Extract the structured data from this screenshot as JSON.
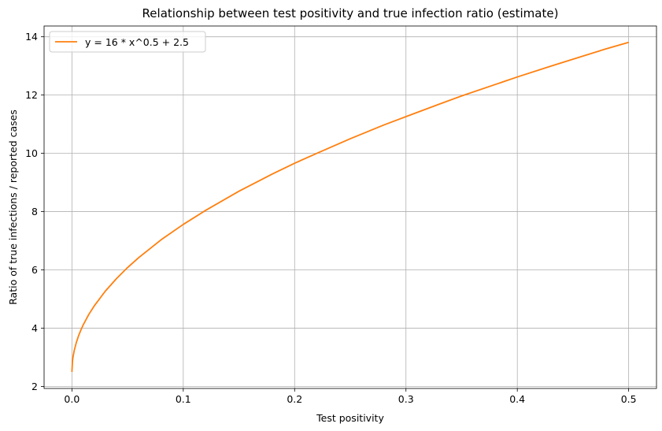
{
  "chart_data": {
    "type": "line",
    "title": "Relationship between test positivity and true infection ratio (estimate)",
    "xlabel": "Test positivity",
    "ylabel": "Ratio of true infections / reported cases",
    "xlim": [
      -0.025,
      0.525
    ],
    "ylim": [
      1.93,
      14.37
    ],
    "x_ticks": [
      0.0,
      0.1,
      0.2,
      0.3,
      0.4,
      0.5
    ],
    "x_tick_labels": [
      "0.0",
      "0.1",
      "0.2",
      "0.3",
      "0.4",
      "0.5"
    ],
    "y_ticks": [
      2,
      4,
      6,
      8,
      10,
      12,
      14
    ],
    "y_tick_labels": [
      "2",
      "4",
      "6",
      "8",
      "10",
      "12",
      "14"
    ],
    "grid": true,
    "legend_position": "top-left",
    "series": [
      {
        "name": "y = 16 * x^0.5 + 2.5",
        "color": "#ff7f0e",
        "x": [
          0.0,
          0.0005,
          0.001,
          0.002,
          0.004,
          0.006,
          0.008,
          0.01,
          0.015,
          0.02,
          0.03,
          0.04,
          0.05,
          0.06,
          0.08,
          0.1,
          0.12,
          0.15,
          0.18,
          0.2,
          0.22,
          0.25,
          0.28,
          0.3,
          0.33,
          0.35,
          0.38,
          0.4,
          0.43,
          0.45,
          0.48,
          0.5
        ],
        "y": [
          2.5,
          2.86,
          3.01,
          3.22,
          3.51,
          3.74,
          3.93,
          4.1,
          4.46,
          4.76,
          5.27,
          5.7,
          6.08,
          6.42,
          7.03,
          7.56,
          8.04,
          8.7,
          9.29,
          9.66,
          10.0,
          10.5,
          10.97,
          11.26,
          11.69,
          11.97,
          12.36,
          12.62,
          12.99,
          13.23,
          13.59,
          13.81
        ]
      }
    ]
  }
}
